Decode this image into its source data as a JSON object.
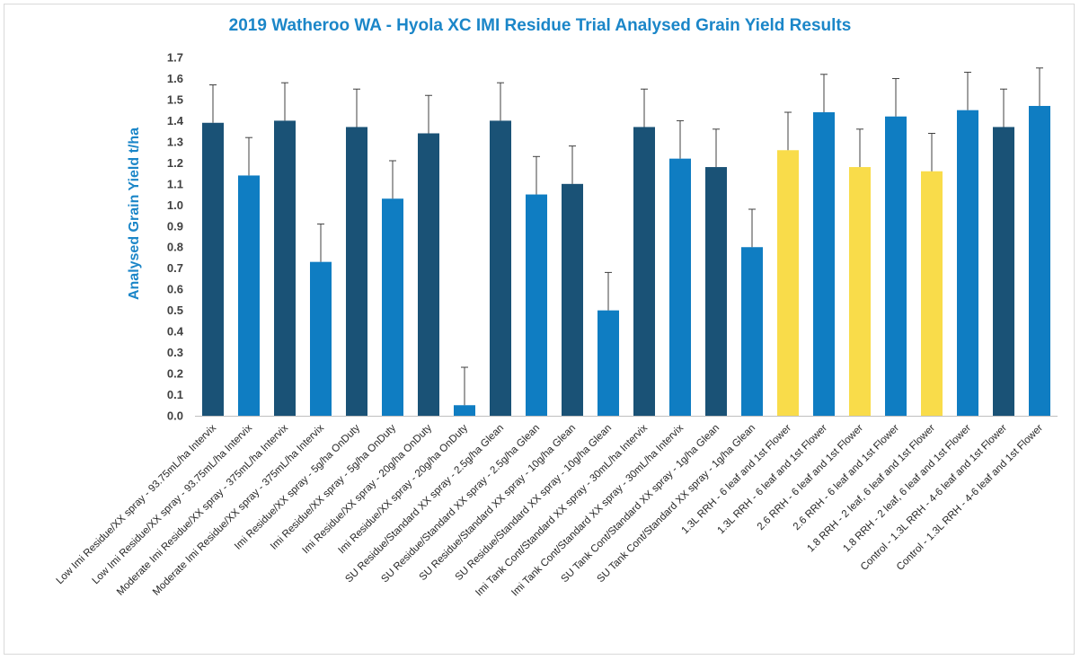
{
  "chart_data": {
    "type": "bar",
    "title": "2019 Watheroo WA - Hyola XC IMI Residue Trial Analysed Grain Yield Results",
    "xlabel": "",
    "ylabel": "Analysed Grain Yield t/ha",
    "ylim": [
      0,
      1.7
    ],
    "ytick_step": 0.1,
    "grid": false,
    "legend": "none",
    "error_bars": true,
    "colors": {
      "dark": "#1a5276",
      "blue": "#0f7dc2",
      "yellow": "#f9dc4a",
      "axis": "#bfbfbf",
      "error": "#404040"
    },
    "categories": [
      "Low Imi Residue/XX spray - 93.75mL/ha Intervix",
      "Low Imi Residue/XX spray - 93.75mL/ha Intervix",
      "Moderate Imi Residue/XX spray - 375mL/ha Intervix",
      "Moderate Imi Residue/XX spray - 375mL/ha Intervix",
      "Imi Residue/XX spray - 5g/ha OnDuty",
      "Imi Residue/XX spray - 5g/ha OnDuty",
      "Imi Residue/XX spray - 20g/ha OnDuty",
      "Imi Residue/XX spray - 20g/ha OnDuty",
      "SU Residue/Standard XX spray - 2.5g/ha Glean",
      "SU Residue/Standard XX spray - 2.5g/ha Glean",
      "SU Residue/Standard XX spray - 10g/ha Glean",
      "SU Residue/Standard XX spray - 10g/ha Glean",
      "Imi Tank Cont/Standard XX spray - 30mL/ha Intervix",
      "Imi Tank Cont/Standard XX spray - 30mL/ha Intervix",
      "SU Tank Cont/Standard XX spray - 1g/ha Glean",
      "SU Tank Cont/Standard XX spray - 1g/ha Glean",
      "1.3L RRH - 6 leaf and 1st Flower",
      "1.3L RRH - 6 leaf and 1st Flower",
      "2.6 RRH - 6 leaf and 1st Flower",
      "2.6 RRH - 6 leaf and 1st Flower",
      "1.8 RRH - 2 leaf, 6 leaf and 1st Flower",
      "1.8 RRH - 2 leaf, 6 leaf and 1st Flower",
      "Control - 1.3L RRH - 4-6 leaf and 1st Flower",
      "Control - 1.3L RRH - 4-6 leaf and 1st Flower"
    ],
    "values": [
      1.39,
      1.14,
      1.4,
      0.73,
      1.37,
      1.03,
      1.34,
      0.05,
      1.4,
      1.05,
      1.1,
      0.5,
      1.37,
      1.22,
      1.18,
      0.8,
      1.26,
      1.44,
      1.18,
      1.42,
      1.16,
      1.45,
      1.37,
      1.47
    ],
    "error": [
      0.18,
      0.18,
      0.18,
      0.18,
      0.18,
      0.18,
      0.18,
      0.18,
      0.18,
      0.18,
      0.18,
      0.18,
      0.18,
      0.18,
      0.18,
      0.18,
      0.18,
      0.18,
      0.18,
      0.18,
      0.18,
      0.18,
      0.18,
      0.18
    ],
    "bar_colors": [
      "dark",
      "blue",
      "dark",
      "blue",
      "dark",
      "blue",
      "dark",
      "blue",
      "dark",
      "blue",
      "dark",
      "blue",
      "dark",
      "blue",
      "dark",
      "blue",
      "yellow",
      "blue",
      "yellow",
      "blue",
      "yellow",
      "blue",
      "dark",
      "blue"
    ]
  }
}
